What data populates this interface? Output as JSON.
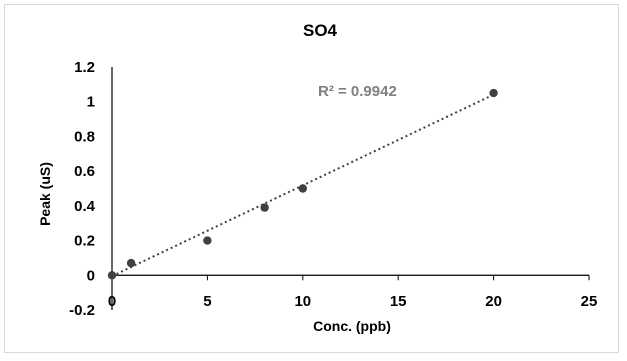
{
  "chart_data": {
    "type": "scatter",
    "title": "SO4",
    "xlabel": "Conc. (ppb)",
    "ylabel": "Peak (uS)",
    "xlim": [
      0,
      25
    ],
    "ylim": [
      -0.2,
      1.2
    ],
    "x_ticks": [
      0,
      5,
      10,
      15,
      20,
      25
    ],
    "y_ticks": [
      -0.2,
      0,
      0.2,
      0.4,
      0.6,
      0.8,
      1,
      1.2
    ],
    "x_tick_labels": [
      "0",
      "5",
      "10",
      "15",
      "20",
      "25"
    ],
    "y_tick_labels": [
      "-0.2",
      "0",
      "0.2",
      "0.4",
      "0.6",
      "0.8",
      "1",
      "1.2"
    ],
    "grid": false,
    "series": [
      {
        "x": [
          0,
          1,
          5,
          8,
          10,
          20
        ],
        "y": [
          0,
          0.07,
          0.2,
          0.39,
          0.5,
          1.05
        ],
        "color": "#404040"
      }
    ],
    "trendline": {
      "style": "dotted",
      "color": "#404040",
      "x_range": [
        0,
        20
      ],
      "slope": 0.0523,
      "intercept": -0.005
    },
    "annotation": "R² = 0.9942"
  }
}
